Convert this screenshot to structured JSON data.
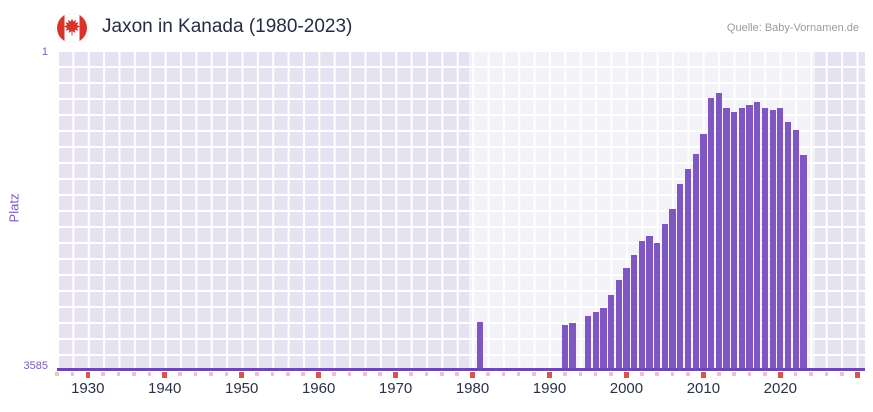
{
  "header": {
    "title": "Jaxon in Kanada (1980-2023)",
    "source": "Quelle: Baby-Vornamen.de"
  },
  "colors": {
    "bar": "#7e57c2",
    "axis_line": "#6d48b0",
    "decade_tick": "#dd5050",
    "minor_tick": "#f3bfcd",
    "plot_background": "#e6e2f1",
    "flag_red": "#d8342a"
  },
  "chart_data": {
    "type": "bar",
    "title": "Jaxon in Kanada (1980-2023)",
    "xlabel": "",
    "ylabel": "Platz",
    "y_axis_inverted": true,
    "ylim": [
      1,
      3585
    ],
    "y_tick_labels": [
      "1",
      "3585"
    ],
    "xlim": [
      1926,
      2031
    ],
    "x_ticks": [
      1930,
      1940,
      1950,
      1960,
      1970,
      1980,
      1990,
      2000,
      2010,
      2020
    ],
    "highlight_band": [
      1979.5,
      2024.5
    ],
    "grid": true,
    "legend": false,
    "points": [
      {
        "year": 1981,
        "rank": 3047
      },
      {
        "year": 1992,
        "rank": 3085
      },
      {
        "year": 1993,
        "rank": 3060
      },
      {
        "year": 1995,
        "rank": 2975
      },
      {
        "year": 1996,
        "rank": 2940
      },
      {
        "year": 1997,
        "rank": 2895
      },
      {
        "year": 1998,
        "rank": 2750
      },
      {
        "year": 1999,
        "rank": 2580
      },
      {
        "year": 2000,
        "rank": 2445
      },
      {
        "year": 2001,
        "rank": 2300
      },
      {
        "year": 2002,
        "rank": 2140
      },
      {
        "year": 2003,
        "rank": 2085
      },
      {
        "year": 2004,
        "rank": 2160
      },
      {
        "year": 2005,
        "rank": 1945
      },
      {
        "year": 2006,
        "rank": 1780
      },
      {
        "year": 2007,
        "rank": 1505
      },
      {
        "year": 2008,
        "rank": 1335
      },
      {
        "year": 2009,
        "rank": 1165
      },
      {
        "year": 2010,
        "rank": 945
      },
      {
        "year": 2011,
        "rank": 535
      },
      {
        "year": 2012,
        "rank": 480
      },
      {
        "year": 2013,
        "rank": 650
      },
      {
        "year": 2014,
        "rank": 700
      },
      {
        "year": 2015,
        "rank": 655
      },
      {
        "year": 2016,
        "rank": 615
      },
      {
        "year": 2017,
        "rank": 580
      },
      {
        "year": 2018,
        "rank": 648
      },
      {
        "year": 2019,
        "rank": 672
      },
      {
        "year": 2020,
        "rank": 648
      },
      {
        "year": 2021,
        "rank": 805
      },
      {
        "year": 2022,
        "rank": 895
      },
      {
        "year": 2023,
        "rank": 1175
      }
    ]
  }
}
